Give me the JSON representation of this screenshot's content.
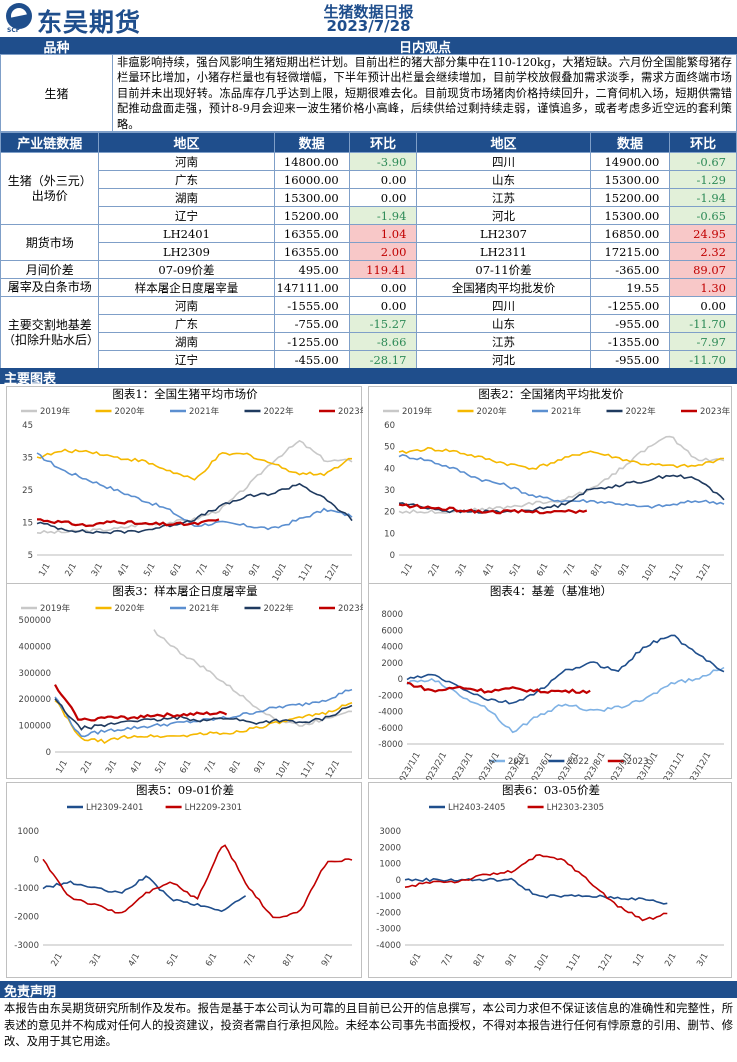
{
  "header": {
    "logo_text": "东吴期货",
    "logo_sub": "SCF",
    "title": "生猪数据日报",
    "date": "2023/7/28"
  },
  "view": {
    "col1": "品种",
    "col2": "日内观点",
    "variety": "生猪",
    "text": "非瘟影响持续，强台风影响生猪短期出栏计划。目前出栏的猪大部分集中在110-120kg，大猪短缺。六月份全国能繁母猪存栏量环比增加，小猪存栏量也有轻微增幅，下半年预计出栏量会继续增加，目前学校放假叠加需求淡季，需求方面终端市场目前并未出现好转。冻品库存几乎达到上限，短期很难去化。目前现货市场猪肉价格持续回升，二育伺机入场，短期供需错配推动盘面走强，预计8-9月会迎来一波生猪价格小高峰，后续供给过剩持续走弱，谨慎追多，或者考虑多近空远的套利策略。"
  },
  "data_table": {
    "headers": [
      "产业链数据",
      "地区",
      "数据",
      "环比",
      "地区",
      "数据",
      "环比"
    ],
    "groups": [
      {
        "label": "生猪（外三元）出场价",
        "rows": [
          [
            "河南",
            "14800.00",
            "-3.90",
            "四川",
            "14900.00",
            "-0.67"
          ],
          [
            "广东",
            "16000.00",
            "0.00",
            "山东",
            "15300.00",
            "-1.29"
          ],
          [
            "湖南",
            "15300.00",
            "0.00",
            "江苏",
            "15200.00",
            "-1.94"
          ],
          [
            "辽宁",
            "15200.00",
            "-1.94",
            "河北",
            "15300.00",
            "-0.65"
          ]
        ]
      },
      {
        "label": "期货市场",
        "rows": [
          [
            "LH2401",
            "16355.00",
            "1.04",
            "LH2307",
            "16850.00",
            "24.95"
          ],
          [
            "LH2309",
            "16355.00",
            "2.00",
            "LH2311",
            "17215.00",
            "2.32"
          ]
        ]
      },
      {
        "label": "月间价差",
        "rows": [
          [
            "07-09价差",
            "495.00",
            "119.41",
            "07-11价差",
            "-365.00",
            "89.07"
          ]
        ]
      },
      {
        "label": "屠宰及白条市场",
        "rows": [
          [
            "样本屠企日度屠宰量",
            "147111.00",
            "0.00",
            "全国猪肉平均批发价",
            "19.55",
            "1.30"
          ]
        ]
      },
      {
        "label": "主要交割地基差（扣除升贴水后）",
        "rows": [
          [
            "河南",
            "-1555.00",
            "0.00",
            "四川",
            "-1255.00",
            "0.00"
          ],
          [
            "广东",
            "-755.00",
            "-15.27",
            "山东",
            "-955.00",
            "-11.70"
          ],
          [
            "湖南",
            "-1255.00",
            "-8.66",
            "江苏",
            "-1355.00",
            "-7.97"
          ],
          [
            "辽宁",
            "-455.00",
            "-28.17",
            "河北",
            "-955.00",
            "-11.70"
          ]
        ]
      }
    ]
  },
  "charts_bar": "主要图表",
  "colors": {
    "y2019": "#c8c8c8",
    "y2020": "#f5b800",
    "y2021": "#5b8fd0",
    "y2022": "#1f3a5f",
    "y2023": "#c00000",
    "b2021": "#7fb2e5",
    "b2022": "#1f4e8c",
    "b2023": "#c00000",
    "s1": "#1f4e8c",
    "s2": "#c00000"
  },
  "chart_data": [
    {
      "type": "line",
      "title": "图表1：全国生猪平均市场价",
      "series_names": [
        "2019年",
        "2020年",
        "2021年",
        "2022年",
        "2023年"
      ],
      "x_ticks": [
        "1/1",
        "2/1",
        "3/1",
        "4/1",
        "5/1",
        "6/1",
        "7/1",
        "8/1",
        "9/1",
        "10/1",
        "11/1",
        "12/1"
      ],
      "ylim": [
        5,
        45
      ],
      "y_ticks": [
        5,
        15,
        25,
        35,
        45
      ],
      "series": [
        {
          "name": "2019年",
          "values": [
            12,
            12,
            12.5,
            13,
            14.5,
            15,
            16,
            19,
            26,
            34,
            40,
            34,
            34
          ]
        },
        {
          "name": "2020年",
          "values": [
            35,
            37,
            37,
            35,
            34,
            31,
            28,
            36,
            36,
            33,
            30,
            30,
            35
          ]
        },
        {
          "name": "2021年",
          "values": [
            36,
            31,
            28,
            25,
            22,
            19,
            14,
            15,
            14,
            13,
            16,
            19,
            17
          ]
        },
        {
          "name": "2022年",
          "values": [
            15,
            13,
            12,
            12,
            12.5,
            14,
            16,
            20,
            23,
            24,
            27,
            22,
            16
          ]
        },
        {
          "name": "2023年",
          "values": [
            16,
            15,
            14,
            15.5,
            14.5,
            14.5,
            14.5,
            16
          ]
        }
      ]
    },
    {
      "type": "line",
      "title": "图表2：全国猪肉平均批发价",
      "series_names": [
        "2019年",
        "2020年",
        "2021年",
        "2022年",
        "2023年"
      ],
      "x_ticks": [
        "1/1",
        "2/1",
        "3/1",
        "4/1",
        "5/1",
        "6/1",
        "7/1",
        "8/1",
        "9/1",
        "10/1",
        "11/1",
        "12/1"
      ],
      "ylim": [
        0,
        60
      ],
      "y_ticks": [
        0,
        10,
        20,
        30,
        40,
        50,
        60
      ],
      "series": [
        {
          "name": "2019年",
          "values": [
            20,
            20,
            20,
            21,
            22,
            24,
            25,
            30,
            38,
            48,
            55,
            44,
            44
          ]
        },
        {
          "name": "2020年",
          "values": [
            47,
            49,
            48,
            45,
            42,
            40,
            44,
            48,
            45,
            42,
            41,
            41,
            45
          ]
        },
        {
          "name": "2021年",
          "values": [
            46,
            44,
            40,
            35,
            32,
            27,
            25,
            25,
            24,
            22,
            23,
            25,
            24
          ]
        },
        {
          "name": "2022年",
          "values": [
            24,
            22,
            20,
            20,
            20,
            21,
            23,
            30,
            32,
            34,
            37,
            35,
            26
          ]
        },
        {
          "name": "2023年",
          "values": [
            23,
            22,
            21,
            20,
            20,
            20,
            20,
            20
          ]
        }
      ]
    },
    {
      "type": "line",
      "title": "图表3：样本屠企日度屠宰量",
      "series_names": [
        "2019年",
        "2020年",
        "2021年",
        "2022年",
        "2023年"
      ],
      "x_ticks": [
        "1/1",
        "2/1",
        "3/1",
        "4/1",
        "5/1",
        "6/1",
        "7/1",
        "8/1",
        "9/1",
        "10/1",
        "11/1",
        "12/1"
      ],
      "ylim": [
        0,
        500000
      ],
      "y_ticks": [
        0,
        100000,
        200000,
        300000,
        400000,
        500000
      ],
      "series": [
        {
          "name": "2019年",
          "values": [
            null,
            null,
            null,
            null,
            460000,
            380000,
            320000,
            250000,
            180000,
            120000,
            100000,
            130000,
            160000
          ]
        },
        {
          "name": "2020年",
          "values": [
            200000,
            50000,
            40000,
            60000,
            60000,
            60000,
            70000,
            70000,
            90000,
            110000,
            130000,
            150000,
            190000
          ]
        },
        {
          "name": "2021年",
          "values": [
            210000,
            60000,
            80000,
            90000,
            100000,
            110000,
            120000,
            130000,
            150000,
            170000,
            180000,
            200000,
            240000
          ]
        },
        {
          "name": "2022年",
          "values": [
            200000,
            90000,
            100000,
            120000,
            120000,
            130000,
            120000,
            130000,
            110000,
            120000,
            110000,
            130000,
            180000
          ]
        },
        {
          "name": "2023年",
          "values": [
            250000,
            120000,
            130000,
            130000,
            140000,
            140000,
            145000,
            147111
          ]
        }
      ]
    },
    {
      "type": "line",
      "title": "图表4：基差（基准地）",
      "series_names": [
        "2021",
        "2022",
        "2023"
      ],
      "x_ticks": [
        "2023/1/1",
        "2023/2/1",
        "2023/3/1",
        "2023/4/1",
        "2023/5/1",
        "2023/6/1",
        "2023/7/1",
        "2023/8/1",
        "2023/9/1",
        "2023/10/1",
        "2023/11/1",
        "2023/12/1"
      ],
      "ylim": [
        -8000,
        8000
      ],
      "y_ticks": [
        -8000,
        -6000,
        -4000,
        -2000,
        0,
        2000,
        4000,
        6000,
        8000
      ],
      "series": [
        {
          "name": "2021",
          "values": [
            -500,
            0,
            -2000,
            -3500,
            -6500,
            -4500,
            -3000,
            -4000,
            -3500,
            -2500,
            -500,
            0,
            1500
          ]
        },
        {
          "name": "2022",
          "values": [
            0,
            500,
            -1000,
            -2500,
            -3000,
            -1500,
            1000,
            2000,
            1000,
            4000,
            5500,
            3000,
            1000
          ]
        },
        {
          "name": "2023",
          "values": [
            -500,
            -1500,
            -1000,
            -1500,
            -1200,
            -1500,
            -1500,
            -1500
          ]
        }
      ]
    },
    {
      "type": "line",
      "title": "图表5：09-01价差",
      "series_names": [
        "LH2309-2401",
        "LH2209-2301"
      ],
      "x_ticks": [
        "2/1",
        "3/1",
        "4/1",
        "5/1",
        "6/1",
        "7/1",
        "8/1",
        "9/1"
      ],
      "ylim": [
        -3000,
        1000
      ],
      "y_ticks": [
        -3000,
        -2000,
        -1000,
        0,
        1000
      ],
      "series": [
        {
          "name": "LH2309-2401",
          "values": [
            -1000,
            -800,
            -1000,
            -1200,
            -600,
            -1400,
            -1600,
            -1800,
            -1200,
            null,
            null,
            null,
            null
          ]
        },
        {
          "name": "LH2209-2301",
          "values": [
            0,
            -1300,
            -1600,
            -1900,
            -1200,
            -800,
            -1400,
            600,
            -1000,
            -2100,
            -1800,
            -100,
            0
          ]
        }
      ]
    },
    {
      "type": "line",
      "title": "图表6：03-05价差",
      "series_names": [
        "LH2403-2405",
        "LH2303-2305"
      ],
      "x_ticks": [
        "6/1",
        "7/1",
        "8/1",
        "9/1",
        "10/1",
        "11/1",
        "12/1",
        "1/1",
        "2/1",
        "3/1"
      ],
      "ylim": [
        -4000,
        3000
      ],
      "y_ticks": [
        -4000,
        -3000,
        -2000,
        -1000,
        0,
        1000,
        2000,
        3000
      ],
      "series": [
        {
          "name": "LH2403-2405",
          "values": [
            0,
            0,
            0,
            0,
            0,
            -1000,
            -1000,
            -1000,
            -1100,
            -1200,
            -1500
          ]
        },
        {
          "name": "LH2303-2305",
          "values": [
            -500,
            -100,
            -100,
            300,
            500,
            1500,
            1200,
            -200,
            -1600,
            -2500,
            -2000
          ]
        }
      ]
    }
  ],
  "disclaimer": {
    "title": "免责声明",
    "text": "本报告由东吴期货研究所制作及发布。报告是基于本公司认为可靠的且目前已公开的信息撰写，本公司力求但不保证该信息的准确性和完整性，所表述的意见并不构成对任何人的投资建议，投资者需自行承担风险。未经本公司事先书面授权，不得对本报告进行任何有悖原意的引用、删节、修改、及用于其它用途。"
  }
}
